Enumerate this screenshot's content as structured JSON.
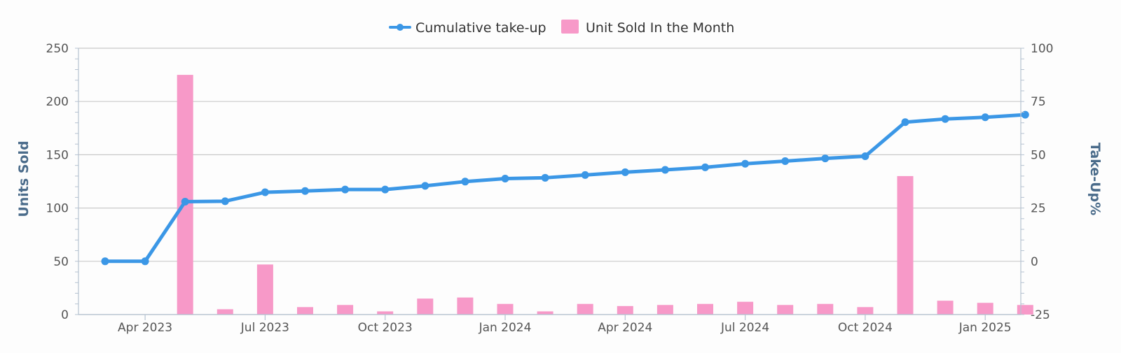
{
  "chart_data": {
    "type": "bar",
    "title": "",
    "legend": {
      "placement": "top-center",
      "items": [
        {
          "label": "Cumulative take-up",
          "kind": "line"
        },
        {
          "label": "Unit Sold In the Month",
          "kind": "bar"
        }
      ]
    },
    "x_axis": {
      "tick_labels": [
        "Apr 2023",
        "Jul 2023",
        "Oct 2023",
        "Jan 2024",
        "Apr 2024",
        "Jul 2024",
        "Oct 2024",
        "Jan 2025"
      ],
      "tick_months": [
        "2023-04",
        "2023-07",
        "2023-10",
        "2024-01",
        "2024-04",
        "2024-07",
        "2024-10",
        "2025-01"
      ]
    },
    "y_axis_left": {
      "label": "Units Sold",
      "range": [
        0,
        250
      ],
      "ticks": [
        "0",
        "50",
        "100",
        "150",
        "200",
        "250"
      ]
    },
    "y_axis_right": {
      "label": "Take-Up%",
      "range": [
        -25,
        100
      ],
      "ticks": [
        "-25",
        "0",
        "25",
        "50",
        "75",
        "100"
      ]
    },
    "grid": true,
    "colors": {
      "line": "#3b97e6",
      "bar": "#f799c8",
      "axis_title": "#4a6b8a"
    },
    "series": [
      {
        "name": "Unit Sold In the Month",
        "type": "bar",
        "axis": "left",
        "points": [
          {
            "month": "2023-05",
            "value": 225
          },
          {
            "month": "2023-06",
            "value": 5
          },
          {
            "month": "2023-07",
            "value": 47
          },
          {
            "month": "2023-08",
            "value": 7
          },
          {
            "month": "2023-09",
            "value": 9
          },
          {
            "month": "2023-10",
            "value": 3
          },
          {
            "month": "2023-11",
            "value": 15
          },
          {
            "month": "2023-12",
            "value": 16
          },
          {
            "month": "2024-01",
            "value": 10
          },
          {
            "month": "2024-02",
            "value": 3
          },
          {
            "month": "2024-03",
            "value": 10
          },
          {
            "month": "2024-04",
            "value": 8
          },
          {
            "month": "2024-05",
            "value": 9
          },
          {
            "month": "2024-06",
            "value": 10
          },
          {
            "month": "2024-07",
            "value": 12
          },
          {
            "month": "2024-08",
            "value": 9
          },
          {
            "month": "2024-09",
            "value": 10
          },
          {
            "month": "2024-10",
            "value": 7
          },
          {
            "month": "2024-11",
            "value": 130
          },
          {
            "month": "2024-12",
            "value": 13
          },
          {
            "month": "2025-01",
            "value": 11
          },
          {
            "month": "2025-02",
            "value": 9
          }
        ]
      },
      {
        "name": "Cumulative take-up",
        "type": "line",
        "axis": "right",
        "points": [
          {
            "month": "2023-03",
            "value": 0
          },
          {
            "month": "2023-04",
            "value": 0
          },
          {
            "month": "2023-05",
            "value": 28
          },
          {
            "month": "2023-06",
            "value": 28.2
          },
          {
            "month": "2023-07",
            "value": 32.4
          },
          {
            "month": "2023-08",
            "value": 33
          },
          {
            "month": "2023-09",
            "value": 33.7
          },
          {
            "month": "2023-10",
            "value": 33.7
          },
          {
            "month": "2023-11",
            "value": 35.4
          },
          {
            "month": "2023-12",
            "value": 37.4
          },
          {
            "month": "2024-01",
            "value": 38.8
          },
          {
            "month": "2024-02",
            "value": 39.2
          },
          {
            "month": "2024-03",
            "value": 40.5
          },
          {
            "month": "2024-04",
            "value": 41.8
          },
          {
            "month": "2024-05",
            "value": 42.9
          },
          {
            "month": "2024-06",
            "value": 44.1
          },
          {
            "month": "2024-07",
            "value": 45.8
          },
          {
            "month": "2024-08",
            "value": 47
          },
          {
            "month": "2024-09",
            "value": 48.3
          },
          {
            "month": "2024-10",
            "value": 49.3
          },
          {
            "month": "2024-11",
            "value": 65.3
          },
          {
            "month": "2024-12",
            "value": 66.8
          },
          {
            "month": "2025-01",
            "value": 67.6
          },
          {
            "month": "2025-02",
            "value": 68.8
          }
        ]
      }
    ]
  }
}
